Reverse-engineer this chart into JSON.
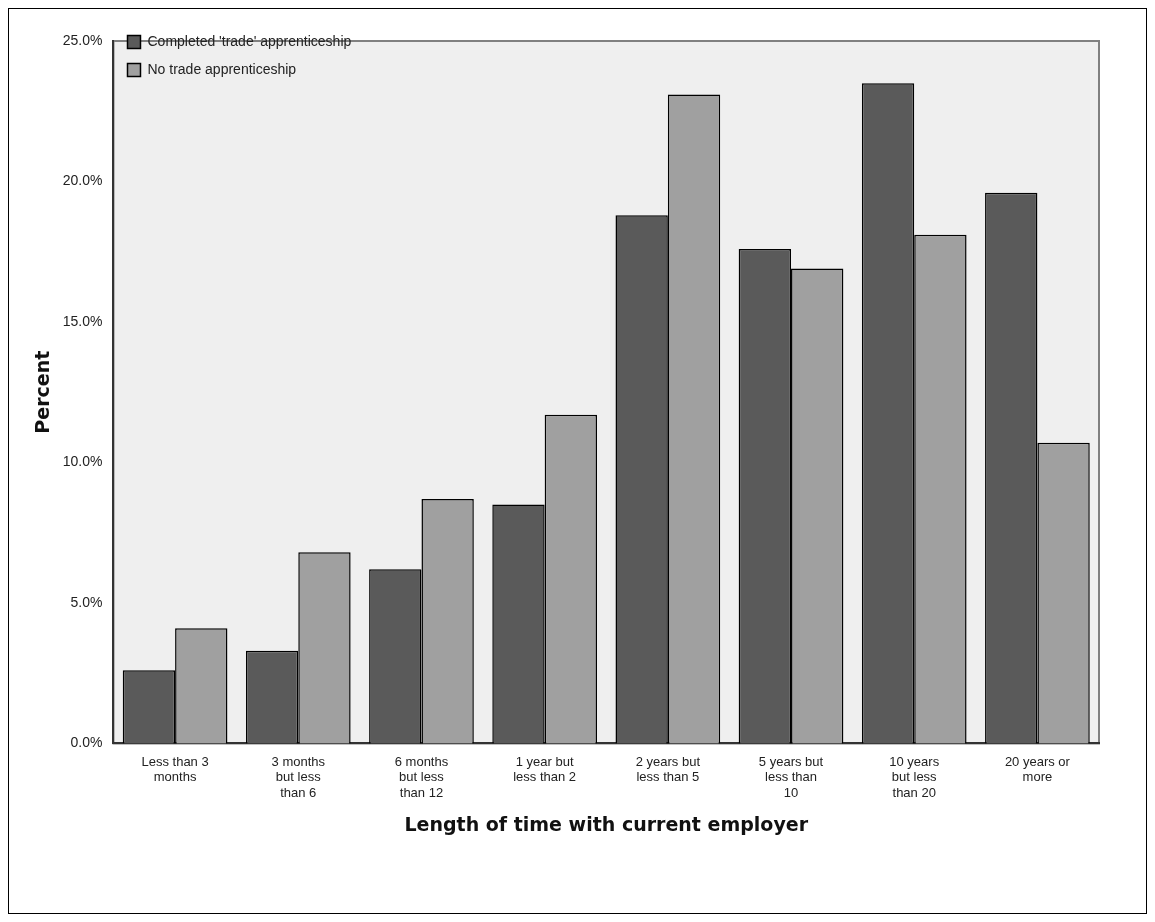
{
  "chart_data": {
    "type": "bar",
    "xlabel": "Length of time with current employer",
    "ylabel": "Percent",
    "categories": [
      "Less than 3 months",
      "3 months but less than 6",
      "6 months but less than 12",
      "1 year but less than 2",
      "2 years but less than 5",
      "5 years but less than 10",
      "10 years but less than 20",
      "20 years or more"
    ],
    "series": [
      {
        "name": "Completed 'trade' apprenticeship",
        "color": "#5a5a5a",
        "values": [
          2.6,
          3.3,
          6.2,
          8.5,
          18.8,
          17.6,
          23.5,
          19.6
        ]
      },
      {
        "name": "No trade apprenticeship",
        "color": "#a0a0a0",
        "values": [
          4.1,
          6.8,
          8.7,
          11.7,
          23.1,
          16.9,
          18.1,
          10.7
        ]
      }
    ],
    "ylim": [
      0,
      25
    ],
    "yticks": [
      {
        "value": 0,
        "label": "0.0%"
      },
      {
        "value": 5,
        "label": "5.0%"
      },
      {
        "value": 10,
        "label": "10.0%"
      },
      {
        "value": 15,
        "label": "15.0%"
      },
      {
        "value": 20,
        "label": "20.0%"
      },
      {
        "value": 25,
        "label": "25.0%"
      }
    ],
    "grid": false,
    "legend": "top left"
  }
}
